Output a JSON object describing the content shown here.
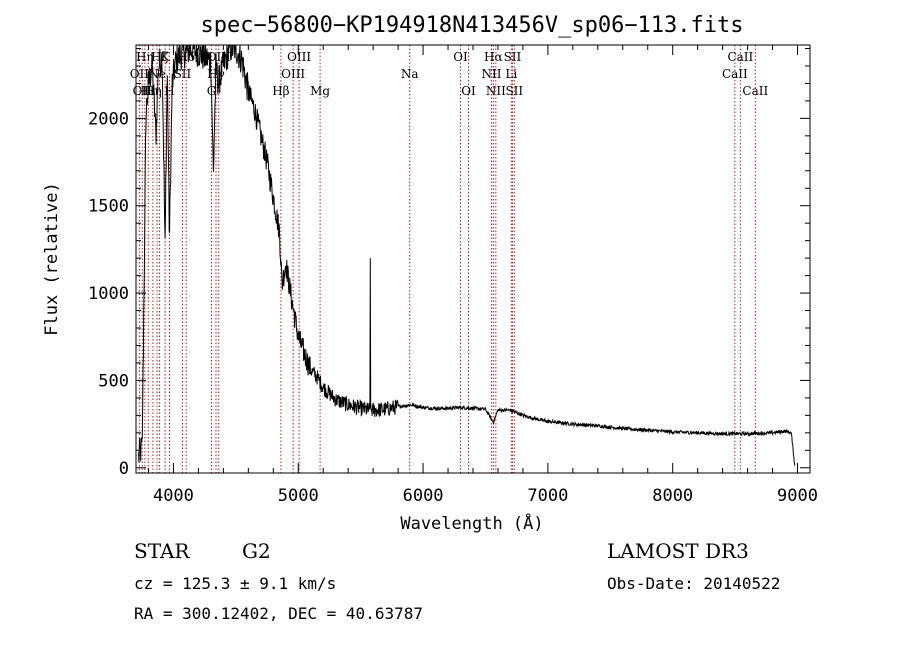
{
  "chart_data": {
    "type": "line",
    "title": "spec−56800−KP194918N413456V_sp06−113.fits",
    "xlabel": "Wavelength (Å)",
    "ylabel": "Flux (relative)",
    "xlim": [
      3700,
      9100
    ],
    "ylim": [
      -30,
      2420
    ],
    "xticks": [
      4000,
      5000,
      6000,
      7000,
      8000,
      9000
    ],
    "yticks": [
      0,
      500,
      1000,
      1500,
      2000
    ],
    "line_color": "#000000",
    "marker_color": "#b22222",
    "spectrum_anchors": [
      [
        3720,
        60
      ],
      [
        3750,
        120
      ],
      [
        3780,
        2020
      ],
      [
        3800,
        2200
      ],
      [
        3830,
        2300
      ],
      [
        3860,
        1900
      ],
      [
        3880,
        2300
      ],
      [
        3910,
        2350
      ],
      [
        3933,
        1250
      ],
      [
        3950,
        2300
      ],
      [
        3968,
        1300
      ],
      [
        3990,
        2200
      ],
      [
        4020,
        2330
      ],
      [
        4050,
        2360
      ],
      [
        4100,
        2380
      ],
      [
        4150,
        2400
      ],
      [
        4200,
        2380
      ],
      [
        4250,
        2350
      ],
      [
        4300,
        2330
      ],
      [
        4320,
        1680
      ],
      [
        4340,
        2300
      ],
      [
        4360,
        2200
      ],
      [
        4400,
        2300
      ],
      [
        4450,
        2400
      ],
      [
        4500,
        2400
      ],
      [
        4550,
        2330
      ],
      [
        4600,
        2150
      ],
      [
        4650,
        2050
      ],
      [
        4700,
        1900
      ],
      [
        4750,
        1750
      ],
      [
        4800,
        1550
      ],
      [
        4850,
        1350
      ],
      [
        4870,
        1050
      ],
      [
        4900,
        1170
      ],
      [
        4950,
        950
      ],
      [
        5000,
        750
      ],
      [
        5050,
        650
      ],
      [
        5100,
        560
      ],
      [
        5150,
        520
      ],
      [
        5200,
        460
      ],
      [
        5300,
        390
      ],
      [
        5400,
        360
      ],
      [
        5500,
        340
      ],
      [
        5560,
        330
      ],
      [
        5600,
        330
      ],
      [
        5700,
        335
      ],
      [
        5800,
        350
      ],
      [
        5900,
        360
      ],
      [
        6000,
        345
      ],
      [
        6100,
        340
      ],
      [
        6200,
        340
      ],
      [
        6300,
        345
      ],
      [
        6400,
        340
      ],
      [
        6500,
        335
      ],
      [
        6563,
        260
      ],
      [
        6600,
        330
      ],
      [
        6700,
        330
      ],
      [
        6800,
        300
      ],
      [
        6900,
        280
      ],
      [
        7000,
        265
      ],
      [
        7200,
        250
      ],
      [
        7400,
        240
      ],
      [
        7600,
        225
      ],
      [
        7800,
        215
      ],
      [
        8000,
        205
      ],
      [
        8200,
        200
      ],
      [
        8400,
        195
      ],
      [
        8600,
        195
      ],
      [
        8800,
        200
      ],
      [
        8900,
        210
      ],
      [
        8950,
        200
      ],
      [
        8980,
        0
      ]
    ],
    "spikes": [
      [
        5577,
        1200
      ]
    ],
    "line_markers": [
      {
        "wavelength": 3727,
        "label": "OII",
        "row": 2
      },
      {
        "wavelength": 3750,
        "label": "OII",
        "row": 3
      },
      {
        "wavelength": 3771,
        "label": "Hη",
        "row": 1
      },
      {
        "wavelength": 3798,
        "label": "Hι",
        "row": 3
      },
      {
        "wavelength": 3835,
        "label": "Hη",
        "row": 3
      },
      {
        "wavelength": 3869,
        "label": "Ne",
        "row": 2
      },
      {
        "wavelength": 3889,
        "label": "Hζ",
        "row": 1
      },
      {
        "wavelength": 3933,
        "label": "K",
        "row": 1
      },
      {
        "wavelength": 3968,
        "label": "H",
        "row": 3
      },
      {
        "wavelength": 4072,
        "label": "SII",
        "row": 2
      },
      {
        "wavelength": 4102,
        "label": "Hδ",
        "row": 1
      },
      {
        "wavelength": 4305,
        "label": "G",
        "row": 3
      },
      {
        "wavelength": 4341,
        "label": "Hγ",
        "row": 2
      },
      {
        "wavelength": 4363,
        "label": "OIII",
        "row": 1
      },
      {
        "wavelength": 4861,
        "label": "Hβ",
        "row": 3
      },
      {
        "wavelength": 4959,
        "label": "OIII",
        "row": 2
      },
      {
        "wavelength": 5007,
        "label": "OIII",
        "row": 1
      },
      {
        "wavelength": 5175,
        "label": "Mg",
        "row": 3
      },
      {
        "wavelength": 5893,
        "label": "Na",
        "row": 2
      },
      {
        "wavelength": 6300,
        "label": "OI",
        "row": 1
      },
      {
        "wavelength": 6364,
        "label": "OI",
        "row": 3
      },
      {
        "wavelength": 6548,
        "label": "NII",
        "row": 2
      },
      {
        "wavelength": 6563,
        "label": "Hα",
        "row": 1
      },
      {
        "wavelength": 6583,
        "label": "NII",
        "row": 3
      },
      {
        "wavelength": 6707,
        "label": "Li",
        "row": 2
      },
      {
        "wavelength": 6716,
        "label": "SII",
        "row": 1
      },
      {
        "wavelength": 6731,
        "label": "SII",
        "row": 3
      },
      {
        "wavelength": 8498,
        "label": "CaII",
        "row": 2
      },
      {
        "wavelength": 8542,
        "label": "CaII",
        "row": 1
      },
      {
        "wavelength": 8662,
        "label": "CaII",
        "row": 3
      }
    ]
  },
  "info": {
    "class": "STAR",
    "subclass": "G2",
    "survey": "LAMOST DR3",
    "cz": "cz = 125.3 ± 9.1 km/s",
    "obs_date": "Obs-Date: 20140522",
    "coords": "RA = 300.12402, DEC =  40.63787"
  }
}
